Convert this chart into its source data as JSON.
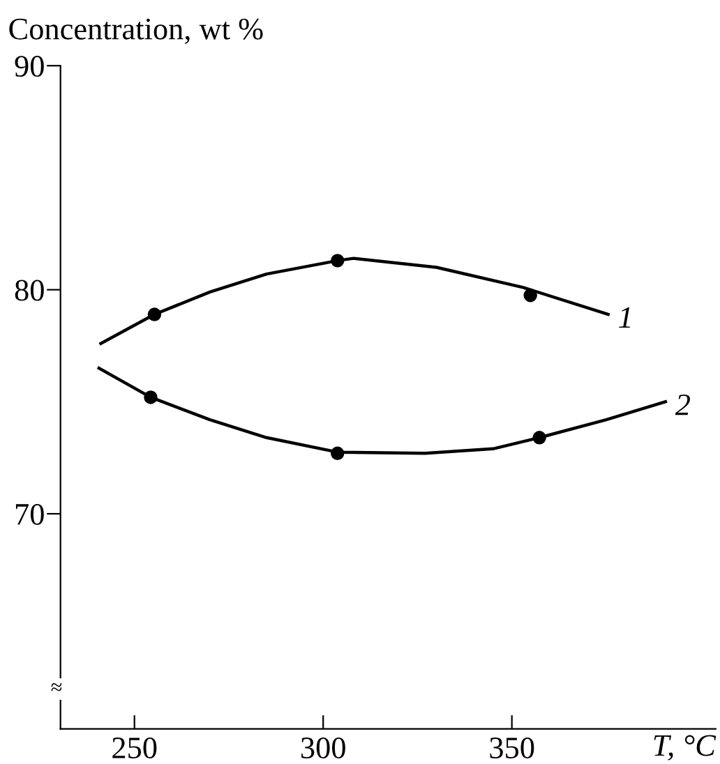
{
  "chart_data": {
    "type": "line",
    "ylabel": "Concentration, wt %",
    "xlabel": "T, °C",
    "xlim": [
      230.4,
      404
    ],
    "ylim": [
      60.4,
      90
    ],
    "xticks": [
      250,
      300,
      350
    ],
    "yticks": [
      70,
      80,
      90
    ],
    "grid": false,
    "legend": false,
    "line_style": "solid",
    "marker": "none",
    "series": [
      {
        "name": "1",
        "color": "#000000",
        "x": [
          241.1,
          255.3,
          270,
          285,
          303.8,
          308,
          330,
          353,
          375.5
        ],
        "values": [
          77.6,
          78.9,
          79.9,
          80.7,
          81.3,
          81.4,
          81.0,
          80.1,
          78.9
        ]
      },
      {
        "name": "2",
        "color": "#000000",
        "x": [
          240.6,
          254.3,
          270,
          285,
          303.8,
          327,
          345,
          357.3,
          375,
          390.7
        ],
        "values": [
          76.5,
          75.2,
          74.2,
          73.4,
          72.75,
          72.7,
          72.9,
          73.4,
          74.2,
          75.0
        ]
      },
      {
        "type": "scatter",
        "marker": "circle",
        "color": "#000000",
        "x": [
          255.3,
          303.8,
          354.9
        ],
        "values": [
          78.9,
          81.3,
          79.75
        ]
      },
      {
        "type": "scatter",
        "marker": "circle",
        "color": "#000000",
        "x": [
          254.3,
          303.8,
          357.3
        ],
        "values": [
          75.2,
          72.7,
          73.4
        ]
      }
    ],
    "annotations": [
      "≈"
    ]
  }
}
